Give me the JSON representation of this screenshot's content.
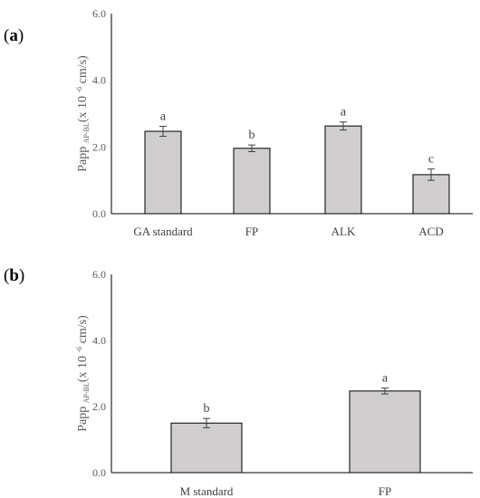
{
  "chart_data": [
    {
      "panel": "(a)",
      "panel_letter": "a",
      "type": "bar",
      "categories": [
        "GA standard",
        "FP",
        "ALK",
        "ACD"
      ],
      "values": [
        2.47,
        1.96,
        2.63,
        1.17
      ],
      "errors": [
        0.15,
        0.1,
        0.12,
        0.17
      ],
      "significance": [
        "a",
        "b",
        "a",
        "c"
      ],
      "ylabel": {
        "main": "Papp",
        "sub": "AP-BL",
        "open": "(x 10",
        "sup": "-6",
        "close": " cm/s)"
      },
      "ylim": [
        0,
        6
      ],
      "yticks": [
        "0.0",
        "2.0",
        "4.0",
        "6.0"
      ],
      "bar_color": "#d0cece",
      "grid": false
    },
    {
      "panel": "(b)",
      "panel_letter": "b",
      "type": "bar",
      "categories": [
        "M  standard",
        "FP"
      ],
      "values": [
        1.5,
        2.47
      ],
      "errors": [
        0.14,
        0.09
      ],
      "significance": [
        "b",
        "a"
      ],
      "ylabel": {
        "main": "Papp",
        "sub": "AP-BL",
        "open": "(x 10",
        "sup": "-6",
        "close": " cm/s)"
      },
      "ylim": [
        0,
        6
      ],
      "yticks": [
        "0.0",
        "2.0",
        "4.0",
        "6.0"
      ],
      "bar_color": "#d0cece",
      "grid": false
    }
  ]
}
